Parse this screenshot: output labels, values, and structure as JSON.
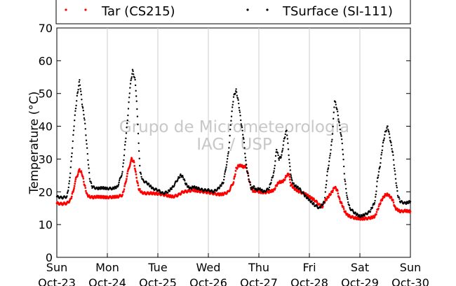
{
  "chart_data": {
    "type": "scatter",
    "title": "",
    "ylabel": "Temperature (°C)",
    "xlabel": "",
    "ylim": [
      0,
      70
    ],
    "yticks": [
      0,
      10,
      20,
      30,
      40,
      50,
      60,
      70
    ],
    "xlim_days": [
      0,
      7
    ],
    "xticks": [
      {
        "day": "Sun",
        "date": "Oct-23"
      },
      {
        "day": "Mon",
        "date": "Oct-24"
      },
      {
        "day": "Tue",
        "date": "Oct-25"
      },
      {
        "day": "Wed",
        "date": "Oct-26"
      },
      {
        "day": "Thu",
        "date": "Oct-27"
      },
      {
        "day": "Fri",
        "date": "Oct-28"
      },
      {
        "day": "Sat",
        "date": "Oct-29"
      },
      {
        "day": "Sun",
        "date": "Oct-30"
      }
    ],
    "grid": "vertical",
    "legend_position": "top",
    "watermark": [
      "Grupo de Micrometeorologia",
      "IAG / USP"
    ],
    "series": [
      {
        "name": "Tar (CS215)",
        "color": "#ff0000",
        "x": [
          0.0,
          0.1,
          0.2,
          0.27,
          0.32,
          0.38,
          0.45,
          0.5,
          0.55,
          0.6,
          0.65,
          0.72,
          0.8,
          0.9,
          1.0,
          1.1,
          1.2,
          1.3,
          1.35,
          1.42,
          1.48,
          1.53,
          1.57,
          1.62,
          1.68,
          1.75,
          1.85,
          2.0,
          2.1,
          2.2,
          2.3,
          2.4,
          2.5,
          2.6,
          2.7,
          2.8,
          2.9,
          3.0,
          3.1,
          3.2,
          3.3,
          3.4,
          3.5,
          3.55,
          3.6,
          3.65,
          3.7,
          3.75,
          3.8,
          3.85,
          3.9,
          3.95,
          4.0,
          4.1,
          4.2,
          4.3,
          4.35,
          4.4,
          4.45,
          4.5,
          4.55,
          4.6,
          4.63,
          4.65,
          4.7,
          4.8,
          4.9,
          5.0,
          5.1,
          5.2,
          5.25,
          5.3,
          5.35,
          5.4,
          5.45,
          5.5,
          5.55,
          5.6,
          5.65,
          5.7,
          5.75,
          5.8,
          5.9,
          6.0,
          6.1,
          6.2,
          6.3,
          6.35,
          6.4,
          6.45,
          6.5,
          6.55,
          6.6,
          6.65,
          6.7,
          6.75,
          6.8,
          6.9,
          7.0
        ],
        "y": [
          16.5,
          16.3,
          16.5,
          17.5,
          20.0,
          24.0,
          26.8,
          25.5,
          22.0,
          19.0,
          18.5,
          18.3,
          18.5,
          18.4,
          18.3,
          18.4,
          18.5,
          19.0,
          22.0,
          27.0,
          30.0,
          29.0,
          25.0,
          21.0,
          19.8,
          19.5,
          19.6,
          19.4,
          19.2,
          18.8,
          18.5,
          19.0,
          20.0,
          20.2,
          20.5,
          20.2,
          20.0,
          19.8,
          19.5,
          19.2,
          19.3,
          20.0,
          23.0,
          27.0,
          28.0,
          28.0,
          27.5,
          28.0,
          24.0,
          21.0,
          20.0,
          20.5,
          20.0,
          19.8,
          20.0,
          20.5,
          22.0,
          23.0,
          23.0,
          23.5,
          25.0,
          25.5,
          21.5,
          22.0,
          21.0,
          20.0,
          19.5,
          18.5,
          17.5,
          16.0,
          15.2,
          17.0,
          18.0,
          19.0,
          20.0,
          21.5,
          20.5,
          17.5,
          16.0,
          14.0,
          13.0,
          12.5,
          12.0,
          11.8,
          11.8,
          12.0,
          12.5,
          14.5,
          16.5,
          18.0,
          19.0,
          19.2,
          18.5,
          17.5,
          15.0,
          14.5,
          14.0,
          14.2,
          14.0
        ]
      },
      {
        "name": "TSurface (SI-111)",
        "color": "#000000",
        "x": [
          0.0,
          0.1,
          0.2,
          0.25,
          0.3,
          0.35,
          0.4,
          0.45,
          0.5,
          0.55,
          0.6,
          0.65,
          0.7,
          0.8,
          0.9,
          1.0,
          1.1,
          1.2,
          1.3,
          1.35,
          1.4,
          1.45,
          1.5,
          1.55,
          1.58,
          1.62,
          1.65,
          1.7,
          1.8,
          1.9,
          2.0,
          2.1,
          2.2,
          2.3,
          2.4,
          2.45,
          2.5,
          2.55,
          2.6,
          2.65,
          2.7,
          2.8,
          2.9,
          3.0,
          3.1,
          3.2,
          3.3,
          3.4,
          3.45,
          3.5,
          3.55,
          3.6,
          3.65,
          3.7,
          3.75,
          3.8,
          3.85,
          3.9,
          3.95,
          4.0,
          4.1,
          4.2,
          4.3,
          4.35,
          4.4,
          4.45,
          4.5,
          4.55,
          4.6,
          4.63,
          4.65,
          4.7,
          4.8,
          4.9,
          5.0,
          5.1,
          5.2,
          5.3,
          5.35,
          5.4,
          5.45,
          5.5,
          5.55,
          5.6,
          5.65,
          5.7,
          5.75,
          5.8,
          5.9,
          6.0,
          6.1,
          6.2,
          6.3,
          6.35,
          6.4,
          6.45,
          6.5,
          6.55,
          6.6,
          6.65,
          6.7,
          6.75,
          6.8,
          6.9,
          7.0
        ],
        "y": [
          18.5,
          18.2,
          18.5,
          23.0,
          32.0,
          42.0,
          49.0,
          54.0,
          47.0,
          42.0,
          33.0,
          24.0,
          21.5,
          21.0,
          21.2,
          21.0,
          21.0,
          21.5,
          26.0,
          34.0,
          42.0,
          52.0,
          57.0,
          54.0,
          48.0,
          35.0,
          26.0,
          23.5,
          22.5,
          21.0,
          20.5,
          19.5,
          20.0,
          21.5,
          24.0,
          25.0,
          24.5,
          22.5,
          21.5,
          21.0,
          21.5,
          21.0,
          20.5,
          20.5,
          20.0,
          21.0,
          23.0,
          32.0,
          42.0,
          49.0,
          51.0,
          47.0,
          41.0,
          36.0,
          28.0,
          24.0,
          21.0,
          21.5,
          20.5,
          21.0,
          20.0,
          21.0,
          26.0,
          33.0,
          30.0,
          31.0,
          36.0,
          39.0,
          30.0,
          25.0,
          23.5,
          22.0,
          21.0,
          19.0,
          17.5,
          16.0,
          15.0,
          17.0,
          25.0,
          30.0,
          36.0,
          48.0,
          45.0,
          40.0,
          35.0,
          24.0,
          18.0,
          15.0,
          13.5,
          12.5,
          13.0,
          14.0,
          17.0,
          24.0,
          28.0,
          34.0,
          38.0,
          40.0,
          36.0,
          32.0,
          25.0,
          19.0,
          17.0,
          16.5,
          17.0
        ]
      }
    ]
  }
}
